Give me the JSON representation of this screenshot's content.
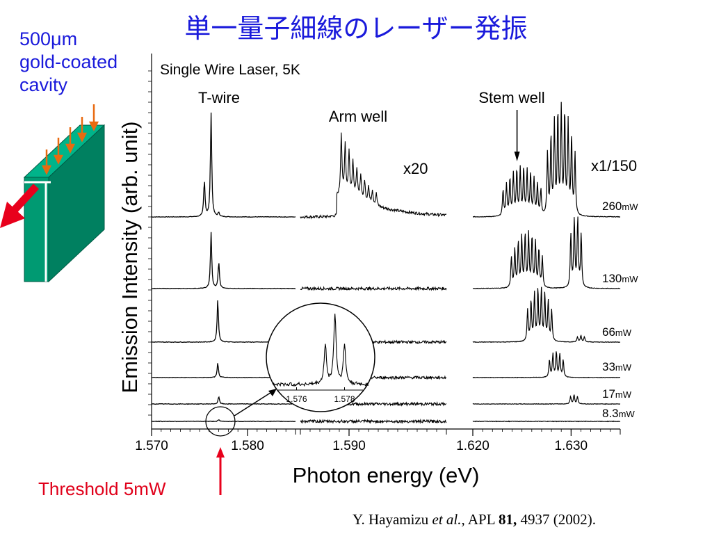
{
  "slide_title": "単一量子細線のレーザー発振",
  "cavity_label": [
    "500μm",
    "gold-coated",
    "cavity"
  ],
  "threshold_label": "Threshold 5mW",
  "citation": {
    "author": "Y. Hayamizu ",
    "etal": "et al.",
    "journal": ", APL ",
    "volume": "81,",
    "rest": " 4937 (2002)."
  },
  "colors": {
    "title_blue": "#1a1adb",
    "threshold_red": "#e0001a",
    "cavity_green": "#009a72",
    "pump_arrow_orange": "#e86a10",
    "emission_arrow_red": "#e8001c"
  },
  "chart_data": {
    "type": "line",
    "title": "Single Wire Laser, 5K",
    "xlabel": "Photon energy (eV)",
    "ylabel": "Emission Intensity (arb. unit)",
    "panels": [
      {
        "name": "T-wire",
        "xlim": [
          1.57,
          1.585
        ],
        "ticks": [
          1.57,
          1.58
        ],
        "tick_labels": [
          "1.570",
          "1.580"
        ]
      },
      {
        "name": "Arm well",
        "xlim": [
          1.585,
          1.6
        ],
        "scale_label": "x20",
        "ticks": [
          1.59
        ],
        "tick_labels": [
          "1.590"
        ]
      },
      {
        "name": "Stem well",
        "xlim": [
          1.62,
          1.635
        ],
        "scale_label": "x1/150",
        "ticks": [
          1.62,
          1.63
        ],
        "tick_labels": [
          "1.620",
          "1.630"
        ]
      }
    ],
    "series": [
      {
        "power_value": "260",
        "unit": "mW",
        "twire_peaks": [
          [
            1.5755,
            0.35
          ],
          [
            1.5762,
            1.0
          ],
          [
            1.577,
            0.04
          ]
        ],
        "arm": {
          "center": 1.5902,
          "height": 0.75,
          "lines": 10,
          "spacing": 0.0004
        },
        "stem": [
          {
            "center": 1.625,
            "height": 0.45,
            "lines": 12
          },
          {
            "center": 1.629,
            "height": 1.0,
            "lines": 9
          }
        ]
      },
      {
        "power_value": "130",
        "unit": "mW",
        "twire_peaks": [
          [
            1.5762,
            0.95
          ],
          [
            1.577,
            0.45
          ]
        ],
        "arm": {
          "center": 1.59,
          "height": 0.03,
          "lines": 0,
          "spacing": 0.0004
        },
        "stem": [
          {
            "center": 1.6255,
            "height": 0.75,
            "lines": 10
          },
          {
            "center": 1.6305,
            "height": 1.0,
            "lines": 4
          }
        ]
      },
      {
        "power_value": "66",
        "unit": "mW",
        "twire_peaks": [
          [
            1.5769,
            1.0
          ]
        ],
        "arm": {
          "center": 1.59,
          "height": 0.02,
          "lines": 0,
          "spacing": 0.0004
        },
        "stem": [
          {
            "center": 1.6268,
            "height": 1.0,
            "lines": 8
          },
          {
            "center": 1.631,
            "height": 0.12,
            "lines": 3
          }
        ]
      },
      {
        "power_value": "33",
        "unit": "mW",
        "twire_peaks": [
          [
            1.5769,
            0.7
          ]
        ],
        "arm": {
          "center": 1.59,
          "height": 0.02,
          "lines": 0,
          "spacing": 0.0004
        },
        "stem": [
          {
            "center": 1.6285,
            "height": 1.0,
            "lines": 5
          }
        ]
      },
      {
        "power_value": "17",
        "unit": "mW",
        "twire_peaks": [
          [
            1.577,
            0.6
          ]
        ],
        "arm": {
          "center": 1.59,
          "height": 0.01,
          "lines": 0,
          "spacing": 0.0004
        },
        "stem": [
          {
            "center": 1.6303,
            "height": 0.6,
            "lines": 3
          }
        ]
      },
      {
        "power_value": "8.3",
        "unit": "mW",
        "twire_peaks": [
          [
            1.577,
            0.2
          ]
        ],
        "arm": {
          "center": 1.59,
          "height": 0.01,
          "lines": 0,
          "spacing": 0.0004
        },
        "stem": []
      }
    ],
    "annotations": {
      "stem_arrow_target_eV": 1.6245,
      "inset": {
        "tick_labels": [
          "1.576",
          "1.578"
        ],
        "peaks": [
          [
            1.5772,
            0.55
          ],
          [
            1.5776,
            1.0
          ],
          [
            1.578,
            0.55
          ]
        ]
      }
    }
  }
}
